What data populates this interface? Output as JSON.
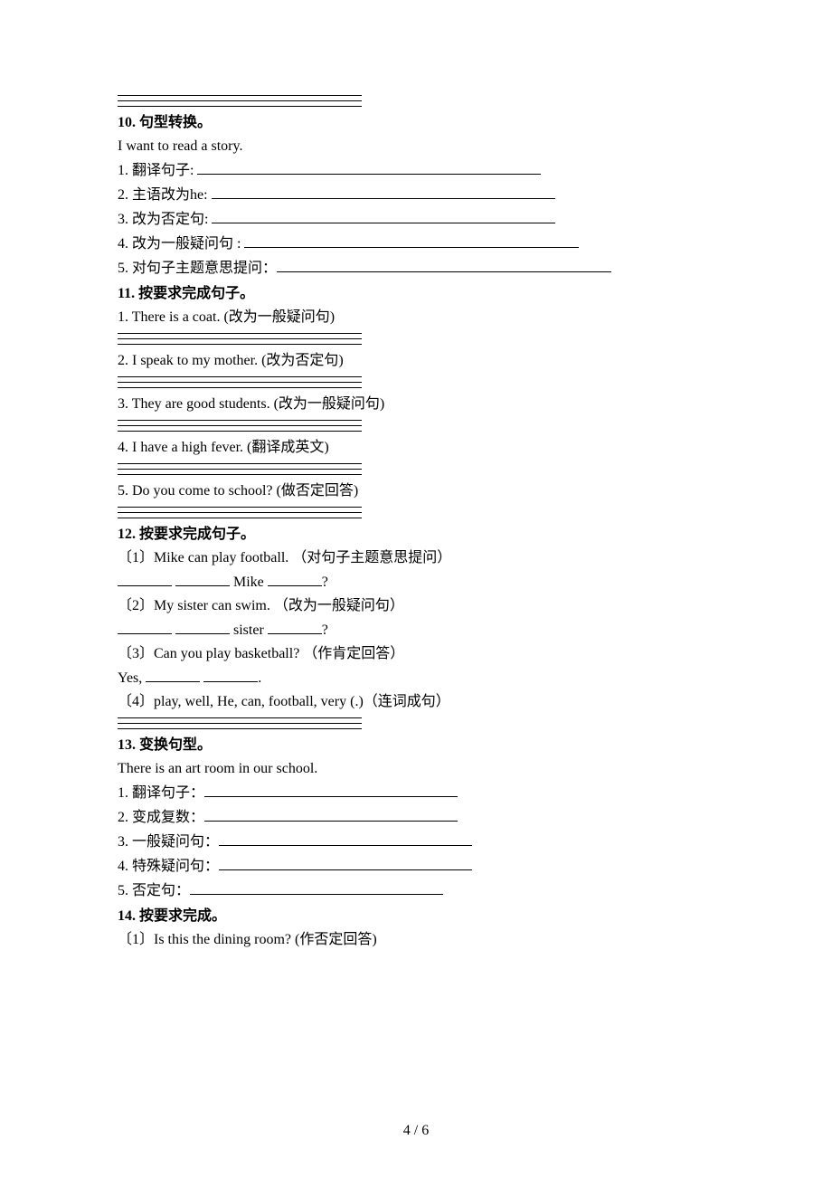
{
  "section10": {
    "title": "10. 句型转换。",
    "sentence": "I want to read a story.",
    "items": [
      "1. 翻译句子: ",
      "2. 主语改为he: ",
      "3. 改为否定句: ",
      "4. 改为一般疑问句 : ",
      "5. 对句子主题意思提问："
    ],
    "blank_widths": [
      380,
      380,
      380,
      370,
      370
    ]
  },
  "section11": {
    "title": "11. 按要求完成句子。",
    "items": [
      "1. There is a coat. (改为一般疑问句)",
      "2. I speak to my mother. (改为否定句)",
      "3. They are good students. (改为一般疑问句)",
      "4. I have a high fever. (翻译成英文)",
      "5. Do you come to school? (做否定回答)"
    ]
  },
  "section12": {
    "title": "12. 按要求完成句子。",
    "q1": "〔1〕Mike can play football. （对句子主题意思提问）",
    "q1_mid": " Mike ",
    "q1_end": "?",
    "q2": "〔2〕My sister can swim. （改为一般疑问句）",
    "q2_mid": " sister ",
    "q2_end": "?",
    "q3": "〔3〕Can you play basketball? （作肯定回答）",
    "q3_prefix": "Yes, ",
    "q3_end": ".",
    "q4": "〔4〕play, well, He, can, football, very (.)（连词成句）"
  },
  "section13": {
    "title": "13. 变换句型。",
    "sentence": "There is an art room in our school.",
    "items": [
      "1. 翻译句子：",
      "2. 变成复数：",
      "3. 一般疑问句：",
      "4. 特殊疑问句：",
      "5. 否定句："
    ],
    "blank_widths": [
      280,
      280,
      280,
      280,
      280
    ]
  },
  "section14": {
    "title": "14. 按要求完成。",
    "q1": "〔1〕Is this the dining room? (作否定回答)"
  },
  "footer": "4 / 6"
}
